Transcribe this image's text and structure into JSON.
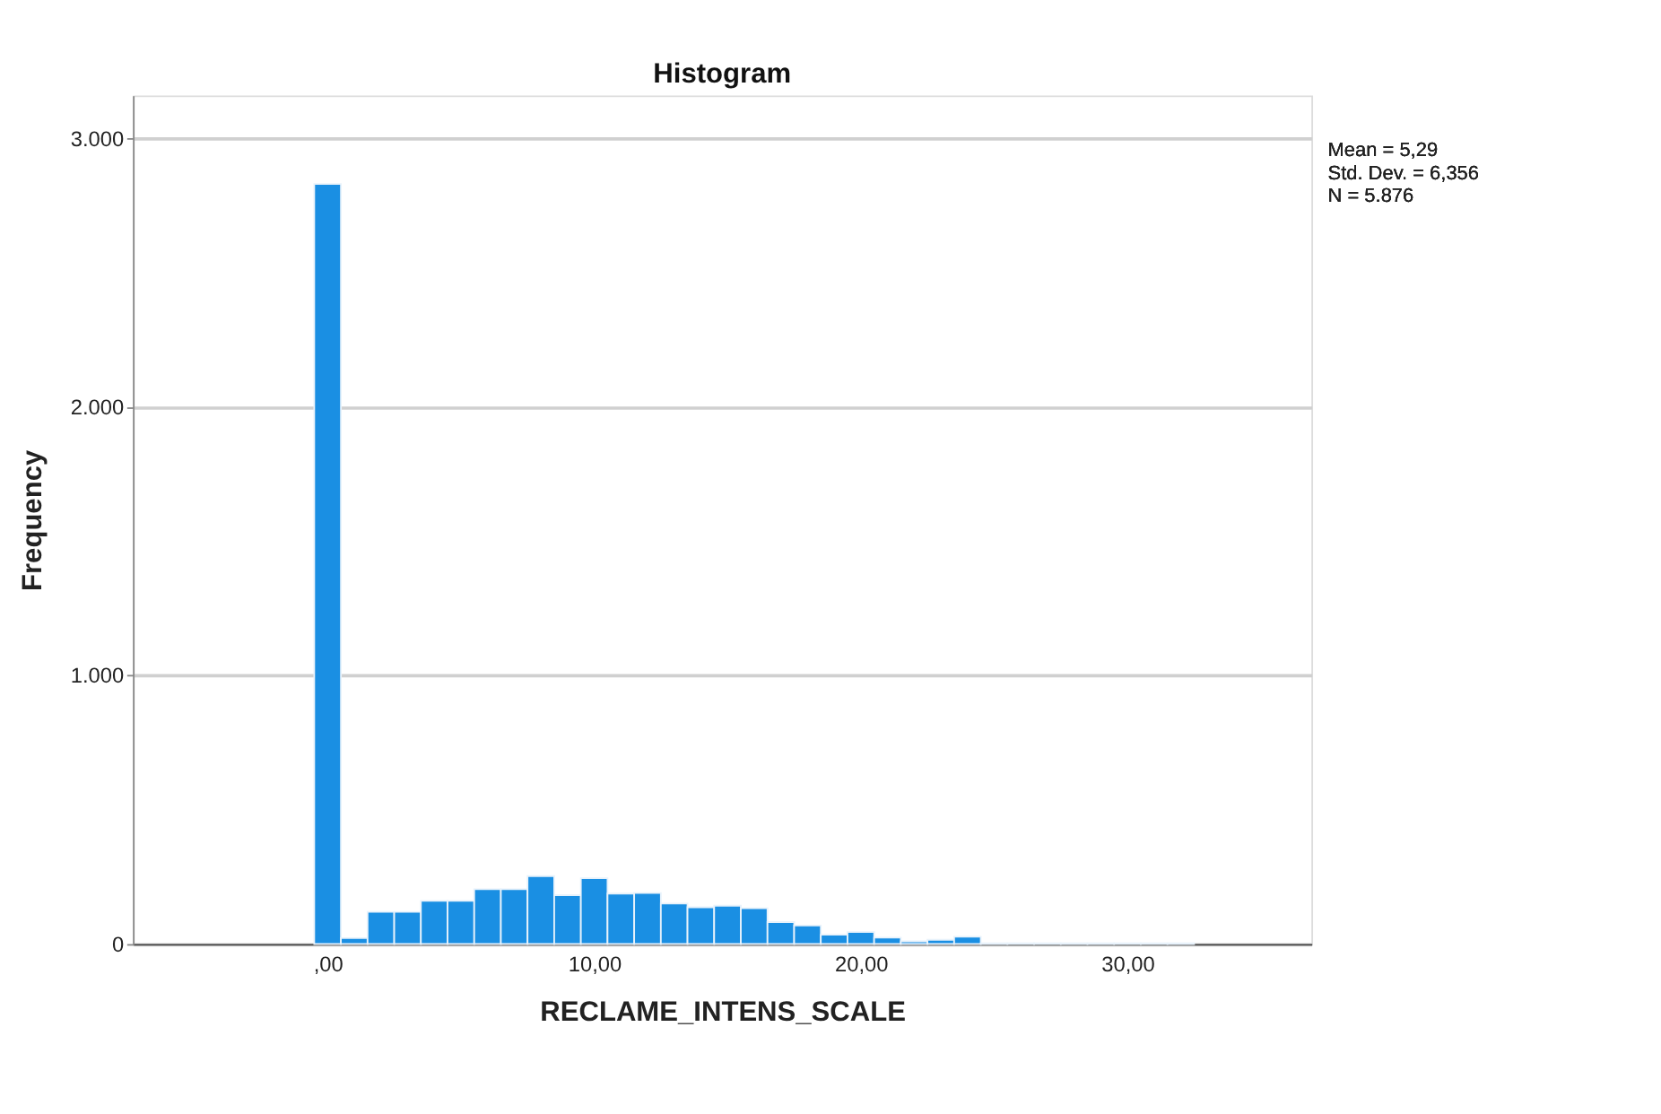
{
  "chart_data": {
    "type": "histogram",
    "title": "Histogram",
    "xlabel": "RECLAME_INTENS_SCALE",
    "ylabel": "Frequency",
    "bins": [
      -0.5,
      0.5,
      1.5,
      2.5,
      3.5,
      4.5,
      5.5,
      6.5,
      7.5,
      8.5,
      9.5,
      10.5,
      11.5,
      12.5,
      13.5,
      14.5,
      15.5,
      16.5,
      17.5,
      18.5,
      19.5,
      20.5,
      21.5,
      22.5,
      23.5,
      24.5,
      25.5,
      26.5,
      27.5,
      28.5,
      29.5,
      30.5,
      31.5,
      32.5
    ],
    "values": [
      2830,
      22,
      120,
      120,
      161,
      161,
      204,
      204,
      253,
      182,
      245,
      188,
      190,
      151,
      137,
      143,
      133,
      82,
      69,
      35,
      45,
      24,
      10,
      16,
      27,
      3,
      3,
      3,
      3,
      3,
      3,
      3,
      3
    ],
    "color": "#1a8fe3",
    "xlim": [
      -7.3,
      36.9
    ],
    "xticks": [
      {
        "value": 0,
        "label": ",00"
      },
      {
        "value": 10,
        "label": "10,00"
      },
      {
        "value": 20,
        "label": "20,00"
      },
      {
        "value": 30,
        "label": "30,00"
      }
    ],
    "ylim": [
      0,
      3160
    ],
    "yticks": [
      0,
      {
        "value": 1000,
        "label": "1.000"
      },
      {
        "value": 2000,
        "label": "2.000"
      },
      {
        "value": 3000,
        "label": "3.000"
      }
    ],
    "grid": "y",
    "annotations": [
      "Mean = 5,29",
      "Std. Dev. = 6,356",
      "N = 5.876"
    ]
  }
}
